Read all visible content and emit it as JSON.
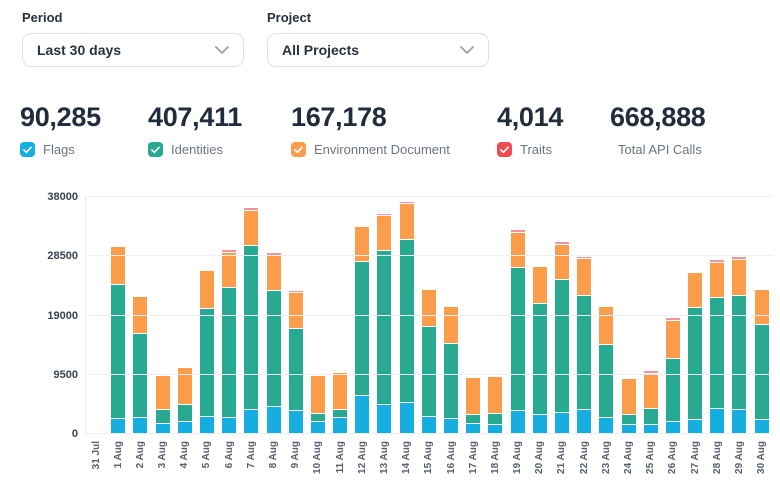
{
  "filters": {
    "period": {
      "label": "Period",
      "value": "Last 30 days"
    },
    "project": {
      "label": "Project",
      "value": "All Projects"
    }
  },
  "stats": [
    {
      "value": "90,285",
      "label": "Flags",
      "color": "#16aee0"
    },
    {
      "value": "407,411",
      "label": "Identities",
      "color": "#28a992"
    },
    {
      "value": "167,178",
      "label": "Environment Document",
      "color": "#fb9d4b"
    },
    {
      "value": "4,014",
      "label": "Traits",
      "color": "#ef4d56"
    },
    {
      "value": "668,888",
      "label": "Total API Calls",
      "color": null
    }
  ],
  "chart_data": {
    "type": "bar",
    "stacked": true,
    "title": "",
    "xlabel": "",
    "ylabel": "",
    "ylim": [
      0,
      38000
    ],
    "yticks": [
      0,
      9500,
      19000,
      28500,
      38000
    ],
    "grid": "horizontal",
    "legend_position": "above-chart (checkbox stat row)",
    "categories": [
      "31 Jul",
      "1 Aug",
      "2 Aug",
      "3 Aug",
      "4 Aug",
      "5 Aug",
      "6 Aug",
      "7 Aug",
      "8 Aug",
      "9 Aug",
      "10 Aug",
      "11 Aug",
      "12 Aug",
      "13 Aug",
      "14 Aug",
      "15 Aug",
      "16 Aug",
      "17 Aug",
      "18 Aug",
      "19 Aug",
      "20 Aug",
      "21 Aug",
      "22 Aug",
      "23 Aug",
      "24 Aug",
      "25 Aug",
      "26 Aug",
      "27 Aug",
      "28 Aug",
      "29 Aug",
      "30 Aug"
    ],
    "series": [
      {
        "name": "Flags",
        "color": "#16aee0",
        "values": [
          0,
          2400,
          2500,
          1650,
          1900,
          2700,
          2600,
          3900,
          4300,
          3650,
          1900,
          2550,
          6100,
          4700,
          5000,
          2700,
          2400,
          1650,
          1500,
          3760,
          3100,
          3400,
          3800,
          2500,
          1400,
          1500,
          1850,
          2300,
          4000,
          3800,
          2200
        ]
      },
      {
        "name": "Identities",
        "color": "#28a992",
        "values": [
          200,
          21400,
          13300,
          2100,
          2650,
          17200,
          20700,
          26100,
          18400,
          13100,
          1100,
          1200,
          21400,
          24500,
          26000,
          14300,
          11900,
          1250,
          1600,
          22700,
          17600,
          21100,
          18250,
          11600,
          1450,
          2300,
          10000,
          17800,
          17700,
          18100,
          15100
        ]
      },
      {
        "name": "Environment Document",
        "color": "#fb9d4b",
        "values": [
          0,
          5800,
          5900,
          5300,
          5650,
          5950,
          5450,
          5450,
          5550,
          5500,
          6050,
          5650,
          5300,
          5400,
          5500,
          5700,
          5800,
          5750,
          5750,
          5500,
          5750,
          5550,
          5650,
          6000,
          5700,
          5560,
          5970,
          5400,
          5400,
          5700,
          5450
        ]
      },
      {
        "name": "Traits",
        "color": "#f2949c",
        "values": [
          0,
          0,
          0,
          0,
          0,
          0,
          150,
          200,
          150,
          100,
          0,
          0,
          0,
          200,
          200,
          0,
          0,
          0,
          0,
          200,
          0,
          100,
          150,
          0,
          0,
          100,
          100,
          0,
          300,
          200,
          0
        ]
      }
    ]
  }
}
